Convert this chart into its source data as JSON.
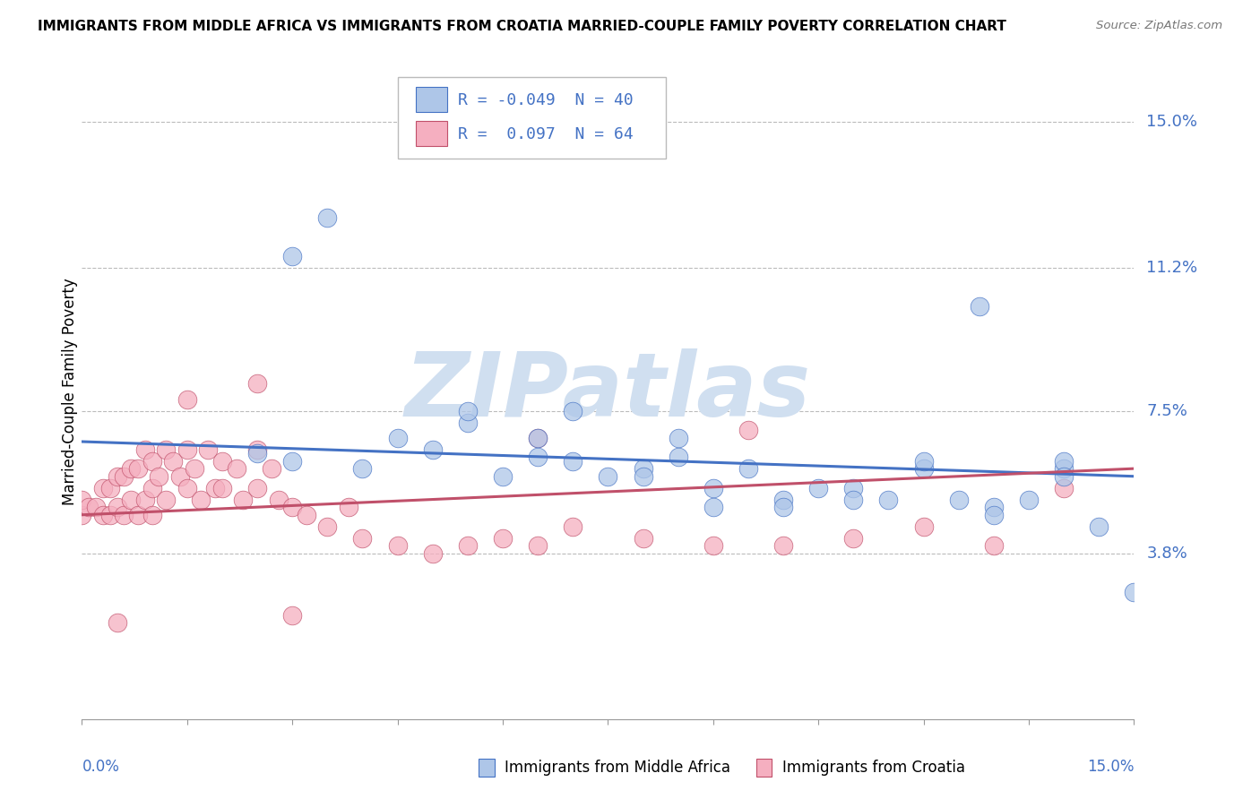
{
  "title": "IMMIGRANTS FROM MIDDLE AFRICA VS IMMIGRANTS FROM CROATIA MARRIED-COUPLE FAMILY POVERTY CORRELATION CHART",
  "source": "Source: ZipAtlas.com",
  "ylabel": "Married-Couple Family Poverty",
  "ytick_labels": [
    "15.0%",
    "11.2%",
    "7.5%",
    "3.8%"
  ],
  "ytick_vals": [
    0.15,
    0.112,
    0.075,
    0.038
  ],
  "xtick_labels": [
    "0.0%",
    "15.0%"
  ],
  "xtick_vals": [
    0.0,
    0.15
  ],
  "xrange": [
    0.0,
    0.15
  ],
  "yrange": [
    -0.005,
    0.165
  ],
  "legend_r_blue": "-0.049",
  "legend_n_blue": "40",
  "legend_r_pink": "0.097",
  "legend_n_pink": "64",
  "color_blue": "#aec6e8",
  "color_pink": "#f5afc0",
  "line_blue": "#4472c4",
  "line_pink": "#c0506a",
  "text_blue": "#4472c4",
  "watermark_color": "#d0dff0",
  "watermark_text": "ZIPatlas",
  "bottom_label_blue": "Immigrants from Middle Africa",
  "bottom_label_pink": "Immigrants from Croatia",
  "blue_x": [
    0.025,
    0.03,
    0.04,
    0.045,
    0.05,
    0.055,
    0.06,
    0.065,
    0.07,
    0.075,
    0.08,
    0.085,
    0.09,
    0.095,
    0.1,
    0.105,
    0.11,
    0.115,
    0.12,
    0.125,
    0.13,
    0.135,
    0.14,
    0.145,
    0.15,
    0.055,
    0.065,
    0.07,
    0.08,
    0.085,
    0.09,
    0.1,
    0.11,
    0.12,
    0.13,
    0.14,
    0.03,
    0.035,
    0.128,
    0.14
  ],
  "blue_y": [
    0.064,
    0.062,
    0.06,
    0.068,
    0.065,
    0.072,
    0.058,
    0.063,
    0.062,
    0.058,
    0.06,
    0.063,
    0.055,
    0.06,
    0.052,
    0.055,
    0.055,
    0.052,
    0.06,
    0.052,
    0.05,
    0.052,
    0.06,
    0.045,
    0.028,
    0.075,
    0.068,
    0.075,
    0.058,
    0.068,
    0.05,
    0.05,
    0.052,
    0.062,
    0.048,
    0.062,
    0.115,
    0.125,
    0.102,
    0.058
  ],
  "pink_x": [
    0.0,
    0.0,
    0.001,
    0.002,
    0.003,
    0.003,
    0.004,
    0.004,
    0.005,
    0.005,
    0.006,
    0.006,
    0.007,
    0.007,
    0.008,
    0.008,
    0.009,
    0.009,
    0.01,
    0.01,
    0.01,
    0.011,
    0.012,
    0.012,
    0.013,
    0.014,
    0.015,
    0.015,
    0.016,
    0.017,
    0.018,
    0.019,
    0.02,
    0.02,
    0.022,
    0.023,
    0.025,
    0.025,
    0.027,
    0.028,
    0.03,
    0.032,
    0.035,
    0.038,
    0.04,
    0.045,
    0.05,
    0.055,
    0.06,
    0.065,
    0.07,
    0.08,
    0.09,
    0.1,
    0.11,
    0.12,
    0.13,
    0.14,
    0.065,
    0.095,
    0.015,
    0.025,
    0.03,
    0.005
  ],
  "pink_y": [
    0.048,
    0.052,
    0.05,
    0.05,
    0.055,
    0.048,
    0.055,
    0.048,
    0.058,
    0.05,
    0.058,
    0.048,
    0.06,
    0.052,
    0.06,
    0.048,
    0.065,
    0.052,
    0.062,
    0.055,
    0.048,
    0.058,
    0.065,
    0.052,
    0.062,
    0.058,
    0.065,
    0.055,
    0.06,
    0.052,
    0.065,
    0.055,
    0.062,
    0.055,
    0.06,
    0.052,
    0.065,
    0.055,
    0.06,
    0.052,
    0.05,
    0.048,
    0.045,
    0.05,
    0.042,
    0.04,
    0.038,
    0.04,
    0.042,
    0.04,
    0.045,
    0.042,
    0.04,
    0.04,
    0.042,
    0.045,
    0.04,
    0.055,
    0.068,
    0.07,
    0.078,
    0.082,
    0.022,
    0.02
  ]
}
